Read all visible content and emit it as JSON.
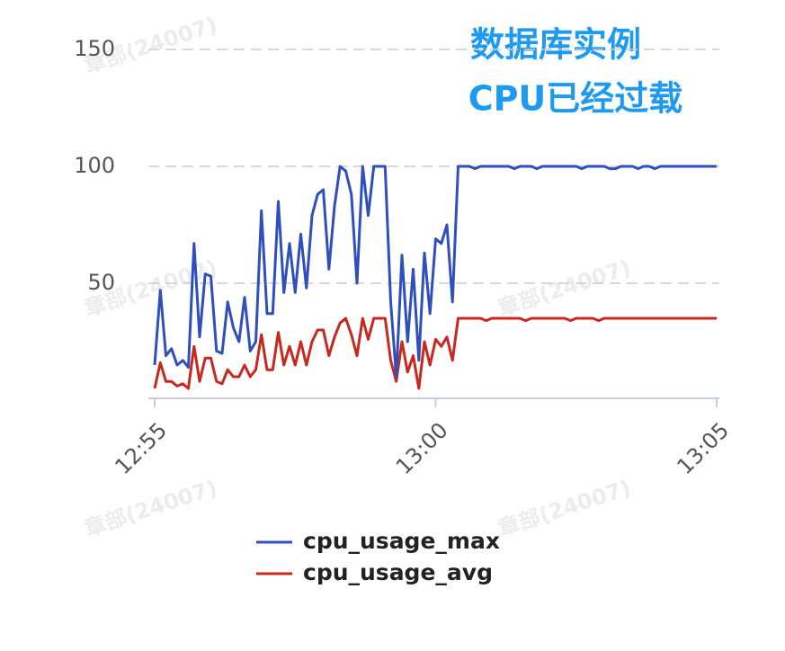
{
  "chart_data": {
    "type": "line",
    "annotations": [
      "数据库实例",
      "CPU已经过载"
    ],
    "watermark": "章部(24007)",
    "x": [
      775.0,
      775.1,
      775.2,
      775.3,
      775.4,
      775.5,
      775.6,
      775.7,
      775.8,
      775.9,
      776.0,
      776.1,
      776.2,
      776.3,
      776.4,
      776.5,
      776.6,
      776.7,
      776.8,
      776.9,
      777.0,
      777.1,
      777.2,
      777.3,
      777.4,
      777.5,
      777.6,
      777.7,
      777.8,
      777.9,
      778.0,
      778.1,
      778.2,
      778.3,
      778.4,
      778.5,
      778.6,
      778.7,
      778.8,
      778.9,
      779.0,
      779.1,
      779.2,
      779.3,
      779.4,
      779.5,
      779.6,
      779.7,
      779.8,
      779.9,
      780.0,
      780.1,
      780.2,
      780.3,
      780.4,
      780.5,
      780.6,
      780.7,
      780.8,
      780.9,
      781.0,
      781.1,
      781.2,
      781.3,
      781.4,
      781.5,
      781.6,
      781.7,
      781.8,
      781.9,
      782.0,
      782.1,
      782.2,
      782.3,
      782.4,
      782.5,
      782.6,
      782.7,
      782.8,
      782.9,
      783.0,
      783.1,
      783.2,
      783.3,
      783.4,
      783.5,
      783.6,
      783.7,
      783.8,
      783.9,
      784.0,
      784.1,
      784.2,
      784.3,
      784.4,
      784.5,
      784.6,
      784.7,
      784.8,
      784.9,
      785.0
    ],
    "series": [
      {
        "name": "cpu_usage_max",
        "color": "#2f4fbf",
        "values": [
          15,
          47,
          19,
          22,
          15,
          17,
          14,
          67,
          27,
          54,
          53,
          21,
          20,
          42,
          31,
          25,
          44,
          21,
          25,
          81,
          37,
          37,
          85,
          46,
          67,
          46,
          71,
          48,
          79,
          88,
          90,
          56,
          83,
          100,
          98,
          88,
          50,
          100,
          79,
          100,
          100,
          100,
          42,
          10,
          62,
          25,
          56,
          17,
          63,
          37,
          69,
          67,
          75,
          42,
          100,
          100,
          100,
          99,
          100,
          100,
          100,
          100,
          100,
          100,
          99,
          100,
          100,
          100,
          99,
          100,
          100,
          100,
          100,
          100,
          100,
          100,
          99,
          100,
          100,
          100,
          100,
          99,
          99,
          100,
          100,
          100,
          99,
          100,
          100,
          99,
          100,
          100,
          100,
          100,
          100,
          100,
          100,
          100,
          100,
          100,
          100
        ]
      },
      {
        "name": "cpu_usage_avg",
        "color": "#c8281e",
        "values": [
          5,
          16,
          8,
          8,
          6,
          7,
          5,
          23,
          8,
          18,
          18,
          8,
          7,
          13,
          10,
          10,
          15,
          10,
          13,
          28,
          13,
          13,
          29,
          15,
          23,
          15,
          25,
          15,
          25,
          30,
          30,
          19,
          27,
          33,
          35,
          28,
          19,
          35,
          26,
          35,
          35,
          35,
          17,
          8,
          25,
          12,
          19,
          5,
          25,
          15,
          26,
          23,
          27,
          17,
          35,
          35,
          35,
          35,
          35,
          34,
          35,
          35,
          35,
          35,
          35,
          35,
          34,
          35,
          35,
          35,
          35,
          35,
          35,
          35,
          34,
          35,
          35,
          35,
          35,
          34,
          35,
          35,
          35,
          35,
          35,
          35,
          35,
          35,
          35,
          35,
          35,
          35,
          35,
          35,
          35,
          35,
          35,
          35,
          35,
          35,
          35
        ]
      }
    ],
    "xlim": [
      775,
      785
    ],
    "xticks": [
      {
        "value": 775,
        "label": "12:55"
      },
      {
        "value": 780,
        "label": "13:00"
      },
      {
        "value": 785,
        "label": "13:05"
      }
    ],
    "ylim": [
      0,
      150
    ],
    "yticks": [
      50,
      100,
      150
    ],
    "grid": true,
    "legend": "bottom"
  }
}
